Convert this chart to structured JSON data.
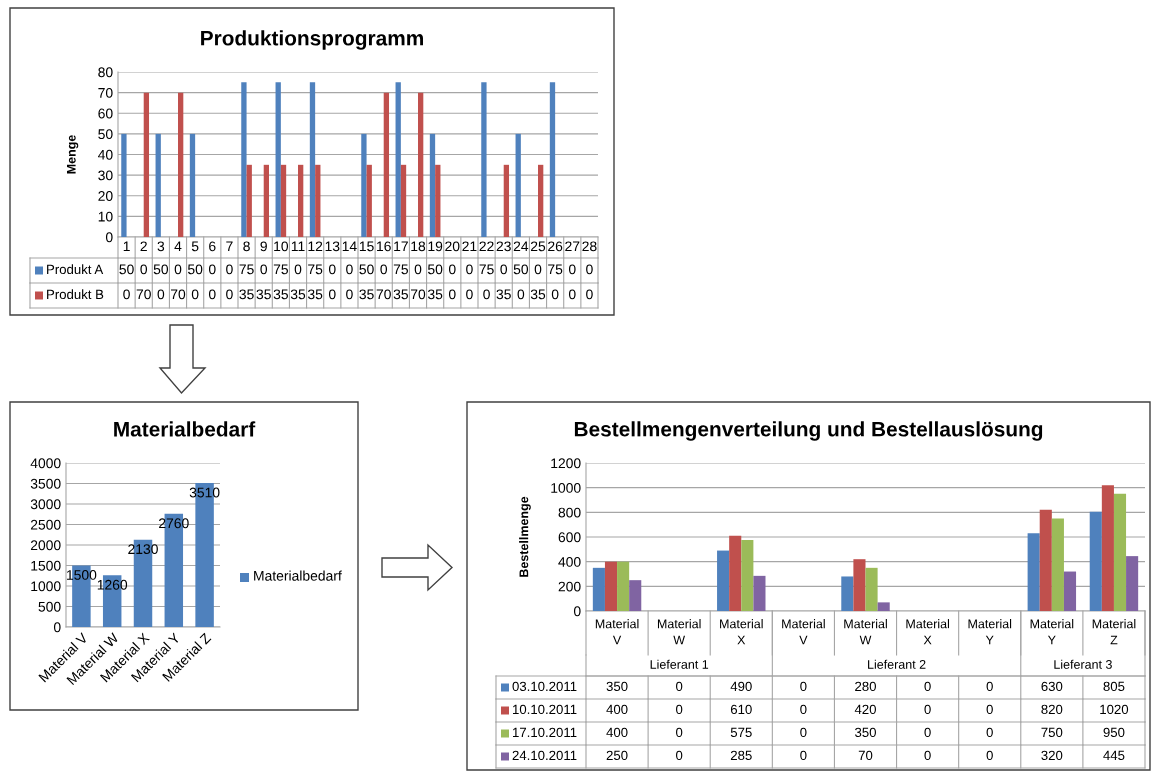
{
  "chart_data": [
    {
      "type": "bar",
      "title": "Produktionsprogramm",
      "ylabel": "Menge",
      "categories": [
        "1",
        "2",
        "3",
        "4",
        "5",
        "6",
        "7",
        "8",
        "9",
        "10",
        "11",
        "12",
        "13",
        "14",
        "15",
        "16",
        "17",
        "18",
        "19",
        "20",
        "21",
        "22",
        "23",
        "24",
        "25",
        "26",
        "27",
        "28"
      ],
      "series": [
        {
          "name": "Produkt A",
          "color": "#4f81bd",
          "values": [
            50,
            0,
            50,
            0,
            50,
            0,
            0,
            75,
            0,
            75,
            0,
            75,
            0,
            0,
            50,
            0,
            75,
            0,
            50,
            0,
            0,
            75,
            0,
            50,
            0,
            75,
            0,
            0
          ]
        },
        {
          "name": "Produkt B",
          "color": "#c0504d",
          "values": [
            0,
            70,
            0,
            70,
            0,
            0,
            0,
            35,
            35,
            35,
            35,
            35,
            0,
            0,
            35,
            70,
            35,
            70,
            35,
            0,
            0,
            0,
            35,
            0,
            35,
            0,
            0,
            0
          ]
        }
      ],
      "ylim": [
        0,
        80
      ],
      "yticks": [
        0,
        10,
        20,
        30,
        40,
        50,
        60,
        70,
        80
      ],
      "grid": "y",
      "legend": "bottom left",
      "data_labels": true
    },
    {
      "type": "bar",
      "title": "Materialbedarf",
      "categories": [
        "Material V",
        "Material W",
        "Material X",
        "Material Y",
        "Material Z"
      ],
      "series": [
        {
          "name": "Materialbedarf",
          "color": "#4f81bd",
          "values": [
            1500,
            1260,
            2130,
            2760,
            3510
          ]
        }
      ],
      "ylim": [
        0,
        4000
      ],
      "yticks": [
        0,
        500,
        1000,
        1500,
        2000,
        2500,
        3000,
        3500,
        4000
      ],
      "grid": "y",
      "legend": "right",
      "data_labels": true
    },
    {
      "type": "bar",
      "title": "Bestellmengenverteilung und Bestellauslösung",
      "ylabel": "Bestellmenge",
      "categories": [
        "Material V",
        "Material W",
        "Material X",
        "Material V",
        "Material W",
        "Material X",
        "Material Y",
        "Material Y",
        "Material Z"
      ],
      "annotations": [
        "Lieferant 1",
        "Lieferant 2",
        "Lieferant 3"
      ],
      "series": [
        {
          "name": "03.10.2011",
          "color": "#4f81bd",
          "values": [
            350,
            0,
            490,
            0,
            280,
            0,
            0,
            630,
            805
          ]
        },
        {
          "name": "10.10.2011",
          "color": "#c0504d",
          "values": [
            400,
            0,
            610,
            0,
            420,
            0,
            0,
            820,
            1020
          ]
        },
        {
          "name": "17.10.2011",
          "color": "#9bbb59",
          "values": [
            400,
            0,
            575,
            0,
            350,
            0,
            0,
            750,
            950
          ]
        },
        {
          "name": "24.10.2011",
          "color": "#8064a2",
          "values": [
            250,
            0,
            285,
            0,
            70,
            0,
            0,
            320,
            445
          ]
        }
      ],
      "ylim": [
        0,
        1200
      ],
      "yticks": [
        0,
        200,
        400,
        600,
        800,
        1000,
        1200
      ],
      "grid": "y",
      "legend": "bottom left",
      "data_labels": true
    }
  ]
}
